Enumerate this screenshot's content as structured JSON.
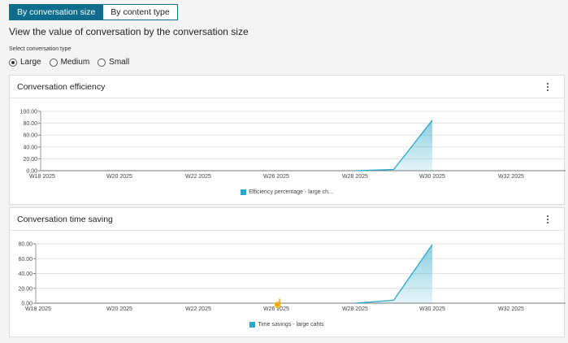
{
  "tabs": [
    {
      "label": "By conversation size",
      "active": true
    },
    {
      "label": "By content type",
      "active": false
    }
  ],
  "heading": "View the value of conversation by the conversation size",
  "conversation_type": {
    "label": "Select conversation type",
    "options": [
      {
        "label": "Large",
        "checked": true
      },
      {
        "label": "Medium",
        "checked": false
      },
      {
        "label": "Small",
        "checked": false
      }
    ]
  },
  "colors": {
    "accent": "#0e6d8c",
    "series": "#29a9cc"
  },
  "cards": [
    {
      "title": "Conversation efficiency",
      "menu_icon": "kebab-menu-icon"
    },
    {
      "title": "Conversation time saving",
      "menu_icon": "kebab-menu-icon"
    }
  ],
  "chart_data": [
    {
      "type": "area",
      "title": "Conversation efficiency",
      "categories": [
        "W18 2025",
        "W20 2025",
        "W22 2025",
        "W26 2025",
        "W28 2025",
        "W30 2025",
        "W32 2025"
      ],
      "yticks": [
        "100.00",
        "80.00",
        "60.00",
        "40.00",
        "20.00",
        "0.00"
      ],
      "ylim": [
        0,
        100
      ],
      "points": [
        {
          "x": 4,
          "y": 0
        },
        {
          "x": 4.5,
          "y": 2
        },
        {
          "x": 5,
          "y": 85
        }
      ],
      "series": [
        {
          "name": "Efficiency percentage - large ch..."
        }
      ],
      "grid": true,
      "legend": "bottom"
    },
    {
      "type": "area",
      "title": "Conversation time saving",
      "categories": [
        "W18 2025",
        "W20 2025",
        "W22 2025",
        "W26 2025",
        "W28 2025",
        "W30 2025",
        "W32 2025"
      ],
      "yticks": [
        "80.00",
        "60.00",
        "40.00",
        "20.00",
        "0.00"
      ],
      "ylim": [
        0,
        80
      ],
      "points": [
        {
          "x": 4,
          "y": 0
        },
        {
          "x": 4.5,
          "y": 4
        },
        {
          "x": 5,
          "y": 79
        }
      ],
      "series": [
        {
          "name": "Time savings - large cahts"
        }
      ],
      "grid": true,
      "legend": "bottom"
    }
  ]
}
